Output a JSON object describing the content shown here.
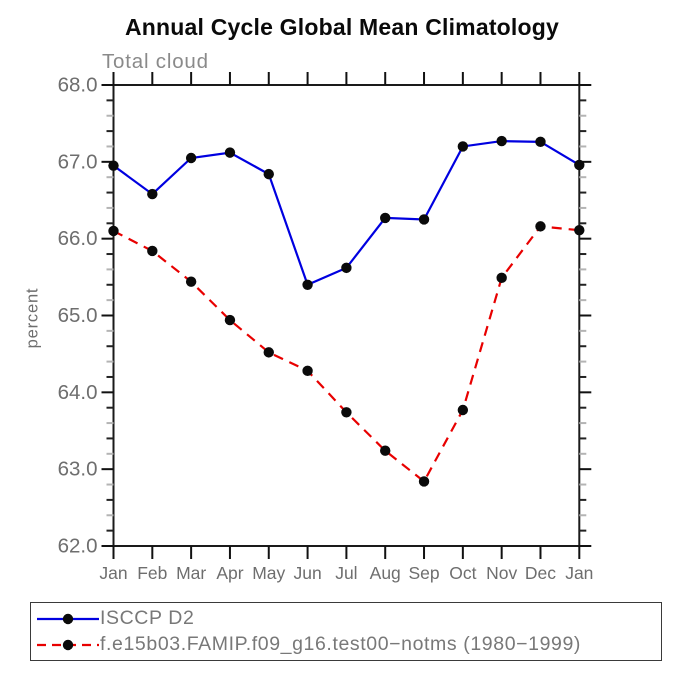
{
  "title": "Annual Cycle Global Mean Climatology",
  "chart_data": {
    "type": "line",
    "title": "Annual Cycle Global Mean Climatology",
    "subtitle": "Total cloud",
    "xlabel": "",
    "ylabel": "percent",
    "x_categories": [
      "Jan",
      "Feb",
      "Mar",
      "Apr",
      "May",
      "Jun",
      "Jul",
      "Aug",
      "Sep",
      "Oct",
      "Nov",
      "Dec",
      "Jan"
    ],
    "ylim": [
      62.0,
      68.0
    ],
    "ytick_labels": [
      "62.0",
      "63.0",
      "64.0",
      "65.0",
      "66.0",
      "67.0",
      "68.0"
    ],
    "minor_tick_step": 0.2,
    "grid": false,
    "legend_position": "bottom",
    "axis_color": "#1a1a1a",
    "tick_label_color": "#6e6e6e",
    "marker_color": "#0a0a0a",
    "series": [
      {
        "name": "ISCCP D2",
        "color": "#0000e0",
        "line_style": "solid",
        "marker": "filled-circle",
        "values": [
          66.95,
          66.58,
          67.05,
          67.12,
          66.84,
          65.4,
          65.62,
          66.27,
          66.25,
          67.2,
          67.27,
          67.26,
          66.96
        ]
      },
      {
        "name": "f.e15b03.FAMIP.f09_g16.test00−notms (1980−1999)",
        "color": "#e80000",
        "line_style": "dashed",
        "marker": "filled-circle",
        "values": [
          66.1,
          65.84,
          65.44,
          64.94,
          64.52,
          64.28,
          63.74,
          63.24,
          62.84,
          63.77,
          65.49,
          66.16,
          66.11
        ]
      }
    ]
  }
}
